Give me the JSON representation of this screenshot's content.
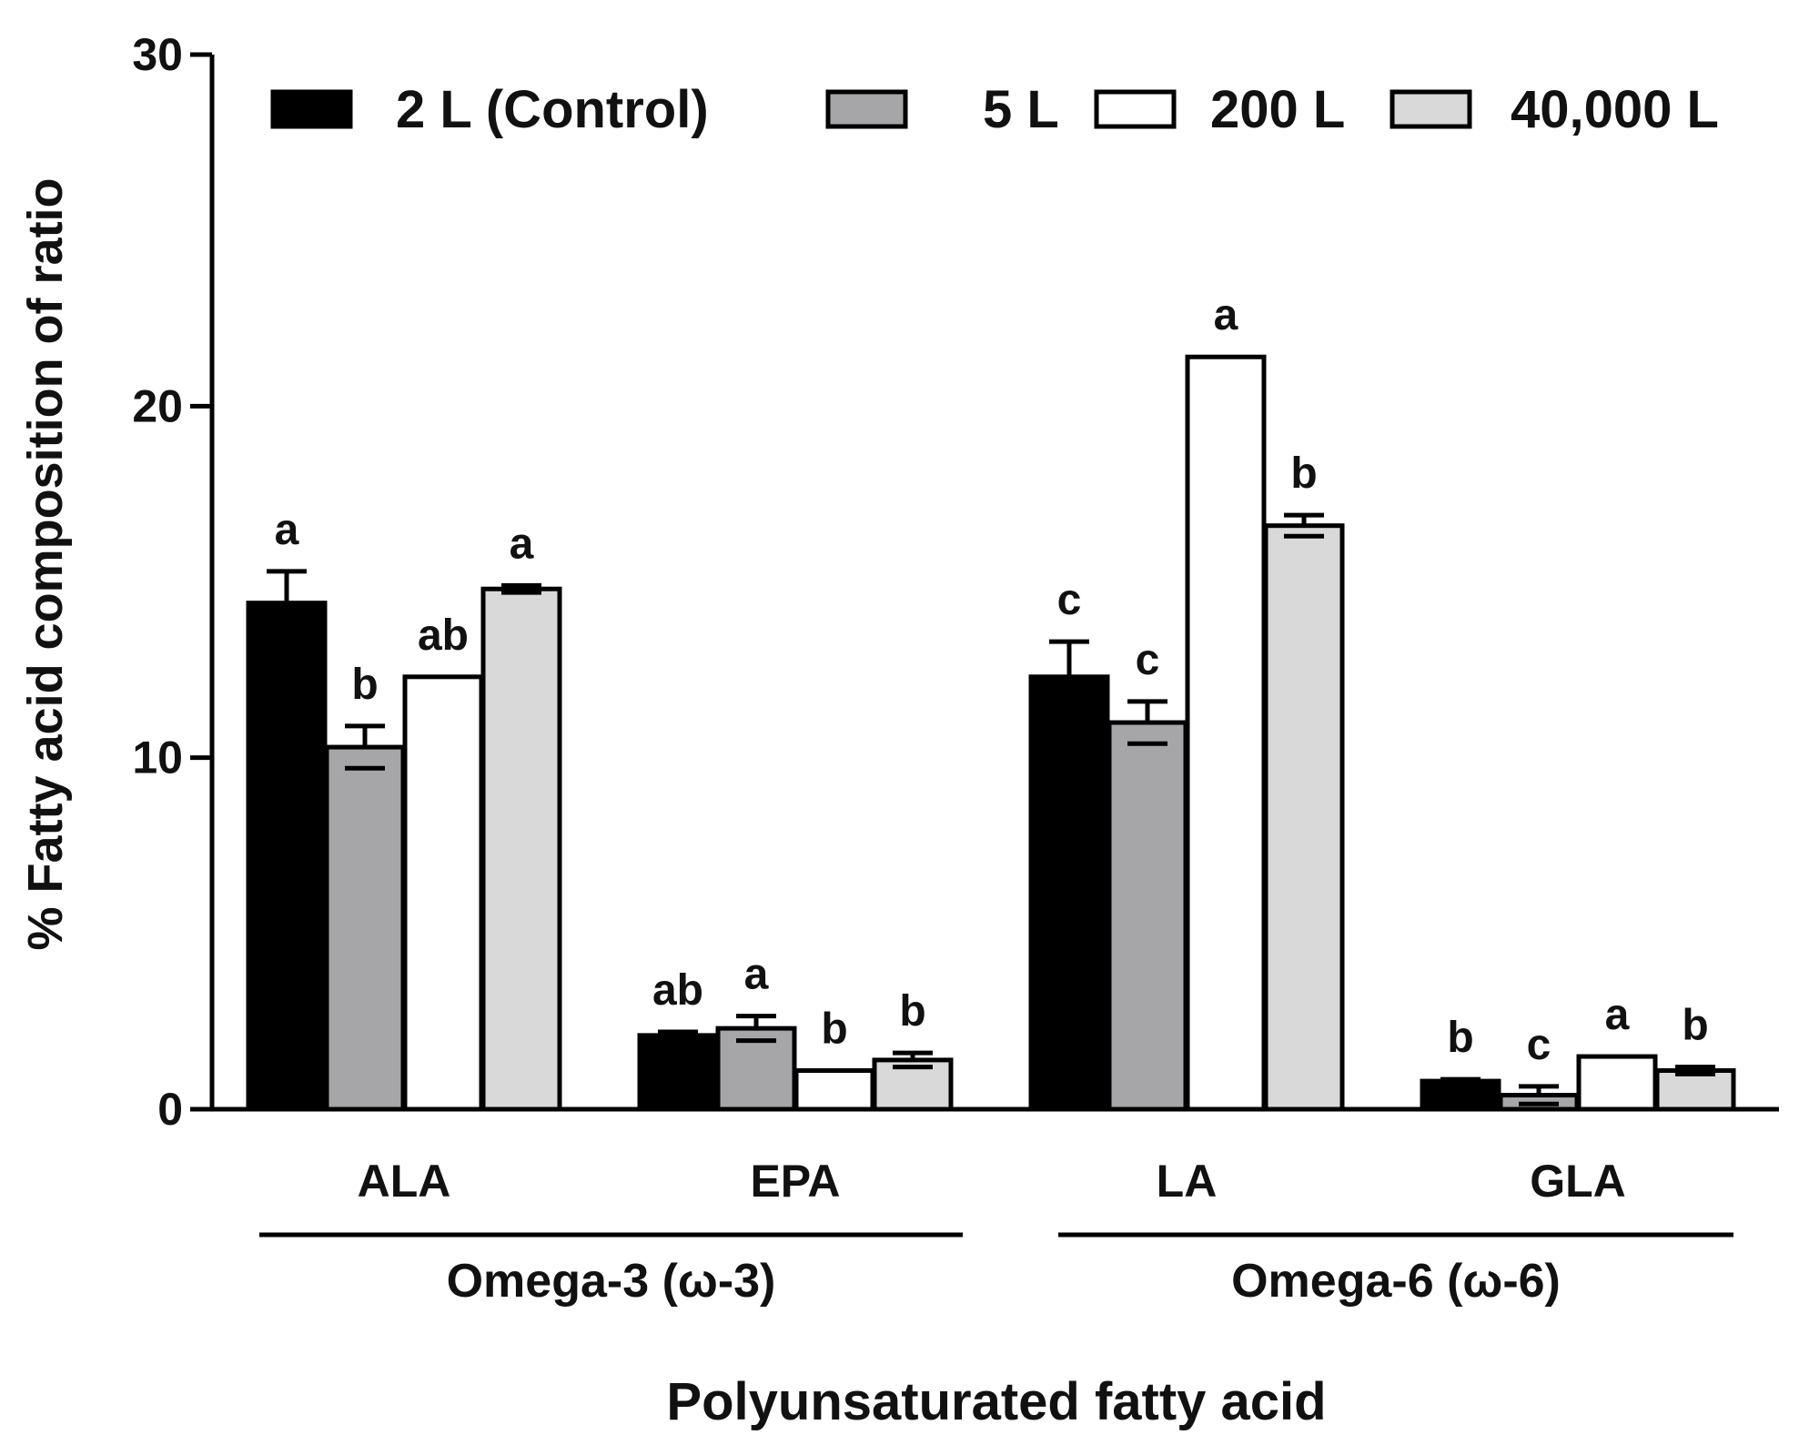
{
  "chart_data": {
    "type": "bar",
    "title": "",
    "xlabel": "Polyunsaturated fatty acid",
    "ylabel": "% Fatty acid composition of ratio",
    "ylim": [
      0,
      30
    ],
    "yticks": [
      0,
      10,
      20,
      30
    ],
    "grid": false,
    "legend_position": "top",
    "categories": [
      "ALA",
      "EPA",
      "LA",
      "GLA"
    ],
    "groups": [
      {
        "label": "Omega-3 (ω-3)",
        "categories": [
          "ALA",
          "EPA"
        ]
      },
      {
        "label": "Omega-6 (ω-6)",
        "categories": [
          "LA",
          "GLA"
        ]
      }
    ],
    "series": [
      {
        "name": "2 L (Control)",
        "color": "#000000",
        "values": [
          14.4,
          2.1,
          12.3,
          0.8
        ],
        "errors": [
          0.9,
          0.1,
          1.0,
          0.05
        ],
        "letters": [
          "a",
          "ab",
          "c",
          "b"
        ]
      },
      {
        "name": "5 L",
        "color": "#a6a6a8",
        "values": [
          10.3,
          2.3,
          11.0,
          0.4
        ],
        "errors": [
          0.6,
          0.35,
          0.6,
          0.25
        ],
        "letters": [
          "b",
          "a",
          "c",
          "c"
        ]
      },
      {
        "name": "200 L",
        "color": "#ffffff",
        "values": [
          12.3,
          1.1,
          21.4,
          1.5
        ],
        "errors": [
          0.0,
          0.0,
          0.0,
          0.0
        ],
        "letters": [
          "ab",
          "b",
          "a",
          "a"
        ]
      },
      {
        "name": "40,000 L",
        "color": "#d9d9d9",
        "values": [
          14.8,
          1.4,
          16.6,
          1.1
        ],
        "errors": [
          0.1,
          0.2,
          0.3,
          0.1
        ],
        "letters": [
          "a",
          "b",
          "b",
          "b"
        ]
      }
    ]
  }
}
